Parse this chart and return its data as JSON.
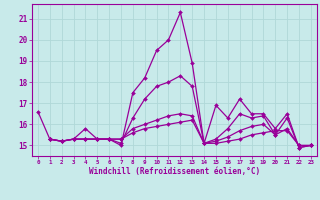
{
  "title": "",
  "xlabel": "Windchill (Refroidissement éolien,°C)",
  "ylabel": "",
  "background_color": "#c8eaea",
  "line_color": "#990099",
  "grid_color": "#b0d8d8",
  "xlim": [
    -0.5,
    23.5
  ],
  "ylim": [
    14.5,
    21.7
  ],
  "yticks": [
    15,
    16,
    17,
    18,
    19,
    20,
    21
  ],
  "xticks": [
    0,
    1,
    2,
    3,
    4,
    5,
    6,
    7,
    8,
    9,
    10,
    11,
    12,
    13,
    14,
    15,
    16,
    17,
    18,
    19,
    20,
    21,
    22,
    23
  ],
  "series": [
    [
      16.6,
      15.3,
      15.2,
      15.3,
      15.8,
      15.3,
      15.3,
      15.0,
      17.5,
      18.2,
      19.5,
      20.0,
      21.3,
      18.9,
      15.1,
      16.9,
      16.3,
      17.2,
      16.5,
      16.5,
      15.8,
      16.5,
      14.9,
      15.0
    ],
    [
      null,
      15.3,
      15.2,
      15.3,
      15.3,
      15.3,
      15.3,
      15.1,
      16.3,
      17.2,
      17.8,
      18.0,
      18.3,
      17.8,
      15.1,
      15.3,
      15.8,
      16.5,
      16.3,
      16.4,
      15.5,
      16.3,
      14.9,
      15.0
    ],
    [
      null,
      15.3,
      15.2,
      15.3,
      15.3,
      15.3,
      15.3,
      15.3,
      15.8,
      16.0,
      16.2,
      16.4,
      16.5,
      16.4,
      15.1,
      15.2,
      15.4,
      15.7,
      15.9,
      16.0,
      15.5,
      15.8,
      15.0,
      15.0
    ],
    [
      null,
      15.3,
      15.2,
      15.3,
      15.3,
      15.3,
      15.3,
      15.3,
      15.6,
      15.8,
      15.9,
      16.0,
      16.1,
      16.2,
      15.1,
      15.1,
      15.2,
      15.3,
      15.5,
      15.6,
      15.7,
      15.7,
      15.0,
      15.0
    ]
  ]
}
